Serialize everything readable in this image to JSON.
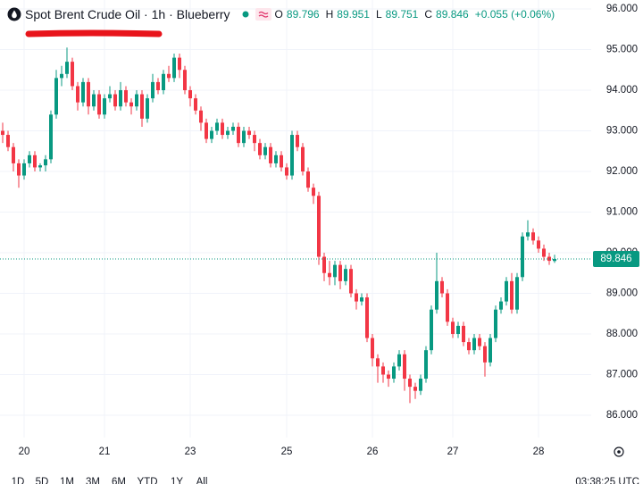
{
  "header": {
    "title": "Spot Brent Crude Oil · 1h · Blueberry",
    "ohlc_labels": [
      "O",
      "H",
      "L",
      "C"
    ],
    "change": "+0.055 (+0.06%)"
  },
  "toolbar": {
    "ranges": [
      "1D",
      "5D",
      "1M",
      "3M",
      "6M",
      "YTD",
      "1Y",
      "All"
    ],
    "clock": "03:38:25 UTC"
  },
  "chart_data": {
    "type": "candlestick",
    "categories": [
      null,
      null,
      null,
      null,
      "20",
      null,
      null,
      null,
      null,
      null,
      null,
      null,
      null,
      null,
      null,
      null,
      null,
      null,
      null,
      "21",
      null,
      null,
      null,
      null,
      null,
      null,
      null,
      null,
      null,
      null,
      null,
      null,
      null,
      null,
      null,
      "23",
      null,
      null,
      null,
      null,
      null,
      null,
      null,
      null,
      null,
      null,
      null,
      null,
      null,
      null,
      null,
      null,
      null,
      "25",
      null,
      null,
      null,
      null,
      null,
      null,
      null,
      null,
      null,
      null,
      null,
      null,
      null,
      null,
      null,
      "26",
      null,
      null,
      null,
      null,
      null,
      null,
      null,
      null,
      null,
      null,
      null,
      null,
      null,
      null,
      "27",
      null,
      null,
      null,
      null,
      null,
      null,
      null,
      null,
      null,
      null,
      null,
      null,
      null,
      null,
      null,
      "28",
      null,
      null,
      null
    ],
    "series": [
      {
        "up_color": "#089981",
        "down_color": "#f23645",
        "open": [
          93.0,
          92.9,
          92.6,
          92.2,
          91.9,
          92.2,
          92.4,
          92.1,
          92.15,
          92.3,
          93.4,
          94.3,
          94.4,
          94.7,
          94.1,
          93.7,
          94.2,
          93.6,
          93.9,
          93.4,
          93.8,
          93.9,
          93.6,
          94.0,
          93.7,
          93.6,
          93.9,
          93.3,
          93.8,
          94.2,
          94.0,
          94.4,
          94.3,
          94.8,
          94.5,
          94.0,
          93.8,
          93.5,
          93.2,
          92.8,
          93.0,
          93.2,
          92.9,
          93.0,
          93.1,
          92.7,
          93.0,
          92.9,
          92.7,
          92.4,
          92.6,
          92.2,
          92.4,
          92.1,
          91.9,
          92.9,
          92.6,
          92.0,
          91.6,
          91.4,
          89.9,
          89.5,
          89.4,
          89.7,
          89.3,
          89.6,
          89.0,
          88.8,
          88.9,
          87.9,
          87.4,
          87.2,
          87.0,
          86.9,
          87.2,
          87.5,
          86.9,
          86.7,
          86.6,
          86.9,
          87.6,
          88.6,
          89.3,
          89.0,
          88.3,
          88.0,
          88.2,
          87.8,
          87.6,
          87.9,
          87.7,
          87.3,
          87.9,
          88.6,
          88.8,
          89.3,
          88.6,
          89.4,
          90.4,
          90.5,
          90.3,
          90.1,
          89.9,
          89.796
        ],
        "high": [
          93.2,
          93.0,
          92.7,
          92.3,
          92.3,
          92.5,
          92.5,
          92.2,
          92.4,
          93.5,
          94.5,
          94.6,
          95.05,
          94.8,
          94.2,
          94.3,
          94.3,
          94.0,
          94.0,
          93.9,
          94.1,
          94.0,
          94.2,
          94.1,
          93.8,
          94.0,
          94.0,
          93.9,
          94.4,
          94.3,
          94.5,
          94.6,
          94.9,
          94.9,
          94.6,
          94.1,
          93.9,
          93.6,
          93.3,
          93.1,
          93.3,
          93.3,
          93.1,
          93.2,
          93.2,
          93.1,
          93.1,
          93.0,
          92.8,
          92.7,
          92.7,
          92.5,
          92.5,
          92.2,
          93.0,
          93.0,
          92.7,
          92.1,
          91.7,
          91.5,
          90.0,
          89.8,
          89.8,
          89.8,
          89.7,
          89.7,
          89.1,
          89.0,
          89.0,
          88.0,
          87.5,
          87.3,
          87.1,
          87.3,
          87.6,
          87.6,
          87.0,
          86.8,
          87.0,
          87.7,
          88.7,
          90.0,
          89.4,
          89.1,
          88.4,
          88.3,
          88.3,
          87.9,
          88.0,
          88.0,
          87.8,
          88.0,
          88.7,
          88.9,
          89.4,
          89.5,
          89.5,
          90.5,
          90.8,
          90.6,
          90.4,
          90.2,
          90.0,
          89.951
        ],
        "low": [
          92.7,
          92.5,
          92.0,
          91.6,
          91.8,
          92.1,
          92.0,
          92.0,
          92.0,
          92.2,
          93.3,
          94.1,
          94.3,
          94.0,
          93.5,
          93.6,
          93.4,
          93.5,
          93.3,
          93.3,
          93.7,
          93.5,
          93.5,
          93.6,
          93.4,
          93.5,
          93.1,
          93.2,
          93.7,
          93.9,
          93.9,
          94.2,
          94.2,
          94.3,
          93.9,
          93.6,
          93.4,
          93.0,
          92.7,
          92.7,
          92.9,
          92.8,
          92.8,
          92.9,
          92.6,
          92.6,
          92.8,
          92.5,
          92.3,
          92.3,
          92.1,
          92.1,
          92.0,
          91.8,
          91.8,
          92.5,
          91.9,
          91.5,
          91.2,
          89.7,
          89.3,
          89.2,
          89.2,
          89.1,
          89.2,
          88.9,
          88.6,
          88.7,
          87.8,
          87.2,
          86.8,
          86.8,
          86.7,
          86.8,
          87.1,
          86.6,
          86.3,
          86.4,
          86.5,
          86.8,
          87.5,
          88.5,
          88.9,
          88.2,
          87.9,
          87.9,
          87.7,
          87.5,
          87.5,
          87.6,
          86.95,
          87.2,
          87.8,
          88.5,
          88.7,
          88.5,
          88.5,
          89.3,
          90.3,
          90.2,
          90.0,
          89.8,
          89.7,
          89.751
        ],
        "close": [
          92.9,
          92.6,
          92.2,
          91.9,
          92.2,
          92.4,
          92.1,
          92.15,
          92.3,
          93.4,
          94.3,
          94.4,
          94.7,
          94.1,
          93.7,
          94.2,
          93.6,
          93.9,
          93.4,
          93.8,
          93.9,
          93.6,
          94.0,
          93.7,
          93.6,
          93.9,
          93.3,
          93.8,
          94.2,
          94.0,
          94.4,
          94.3,
          94.8,
          94.5,
          94.0,
          93.8,
          93.5,
          93.2,
          92.8,
          93.0,
          93.2,
          92.9,
          93.0,
          93.1,
          92.7,
          93.0,
          92.9,
          92.7,
          92.4,
          92.6,
          92.2,
          92.4,
          92.1,
          91.9,
          92.9,
          92.6,
          92.0,
          91.6,
          91.4,
          89.9,
          89.5,
          89.4,
          89.7,
          89.3,
          89.6,
          89.0,
          88.8,
          88.9,
          87.9,
          87.4,
          87.2,
          87.0,
          86.9,
          87.2,
          87.5,
          86.9,
          86.7,
          86.6,
          86.9,
          87.6,
          88.6,
          89.3,
          89.0,
          88.3,
          88.0,
          88.2,
          87.8,
          87.6,
          87.9,
          87.7,
          87.3,
          87.9,
          88.6,
          88.8,
          89.3,
          88.6,
          89.4,
          90.4,
          90.5,
          90.3,
          90.1,
          89.9,
          89.8,
          89.846
        ]
      }
    ],
    "ylim": [
      85.45,
      96.22
    ],
    "yticks": [
      {
        "value": 86,
        "label": "86.000"
      },
      {
        "value": 87,
        "label": "87.000"
      },
      {
        "value": 88,
        "label": "88.000"
      },
      {
        "value": 89,
        "label": "89.000"
      },
      {
        "value": 90,
        "label": "90.000"
      },
      {
        "value": 91,
        "label": "91.000"
      },
      {
        "value": 92,
        "label": "92.000"
      },
      {
        "value": 93,
        "label": "93.000"
      },
      {
        "value": 94,
        "label": "94.000"
      },
      {
        "value": 95,
        "label": "95.000"
      },
      {
        "value": 96,
        "label": "96.000"
      }
    ],
    "grid": true,
    "last_price_line": true
  }
}
